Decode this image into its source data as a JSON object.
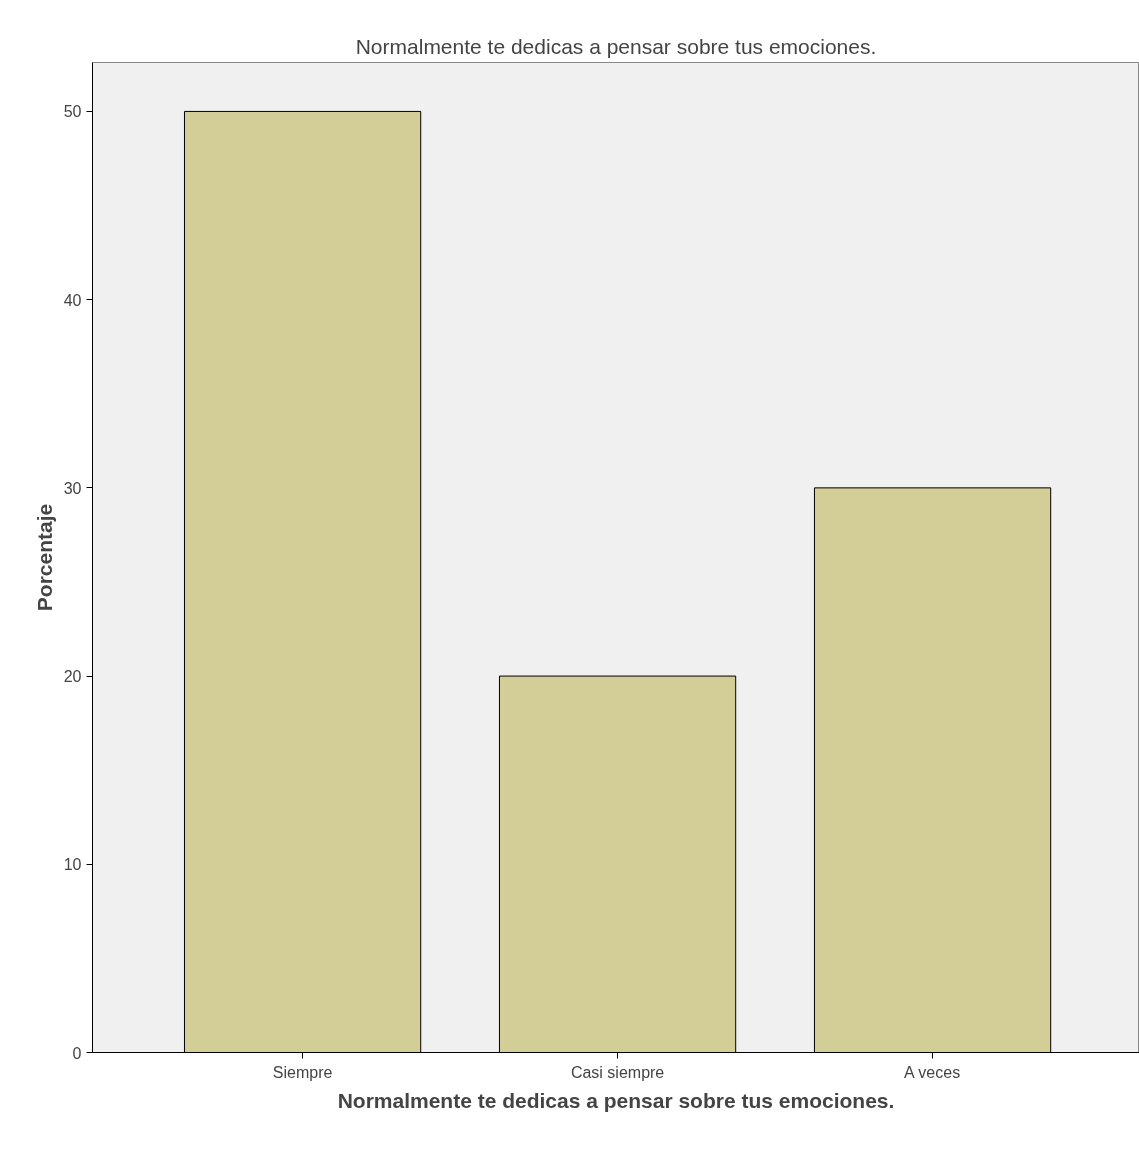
{
  "chart_data": {
    "type": "bar",
    "title": "Normalmente te dedicas a pensar sobre tus emociones.",
    "xlabel": "Normalmente te dedicas a pensar sobre tus emociones.",
    "ylabel": "Porcentaje",
    "categories": [
      "Siempre",
      "Casi siempre",
      "A veces"
    ],
    "values": [
      50,
      20,
      30
    ],
    "color": "#d3ce97",
    "ylim": [
      0,
      52.6
    ],
    "yticks": [
      0,
      10,
      20,
      30,
      40,
      50
    ],
    "grid": false
  }
}
